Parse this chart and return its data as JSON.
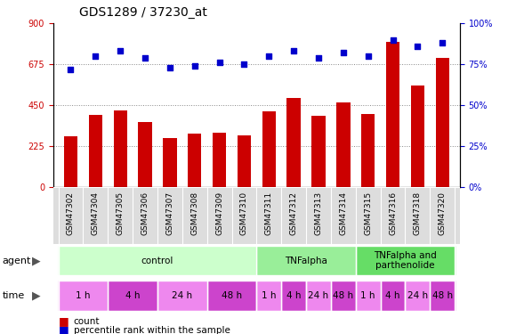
{
  "title": "GDS1289 / 37230_at",
  "samples": [
    "GSM47302",
    "GSM47304",
    "GSM47305",
    "GSM47306",
    "GSM47307",
    "GSM47308",
    "GSM47309",
    "GSM47310",
    "GSM47311",
    "GSM47312",
    "GSM47313",
    "GSM47314",
    "GSM47315",
    "GSM47316",
    "GSM47318",
    "GSM47320"
  ],
  "counts": [
    280,
    395,
    420,
    360,
    270,
    295,
    300,
    285,
    415,
    490,
    390,
    465,
    400,
    800,
    560,
    710
  ],
  "percentiles": [
    72,
    80,
    83,
    79,
    73,
    74,
    76,
    75,
    80,
    83,
    79,
    82,
    80,
    90,
    86,
    88
  ],
  "ylim_left": [
    0,
    900
  ],
  "ylim_right": [
    0,
    100
  ],
  "yticks_left": [
    0,
    225,
    450,
    675,
    900
  ],
  "yticks_right": [
    0,
    25,
    50,
    75,
    100
  ],
  "bar_color": "#cc0000",
  "dot_color": "#0000cc",
  "agent_groups": [
    {
      "label": "control",
      "start": 0,
      "end": 8,
      "color": "#ccffcc"
    },
    {
      "label": "TNFalpha",
      "start": 8,
      "end": 12,
      "color": "#99ee99"
    },
    {
      "label": "TNFalpha and\nparthenolide",
      "start": 12,
      "end": 16,
      "color": "#66dd66"
    }
  ],
  "time_groups": [
    {
      "label": "1 h",
      "start": 0,
      "end": 2,
      "color": "#ee88ee"
    },
    {
      "label": "4 h",
      "start": 2,
      "end": 4,
      "color": "#cc44cc"
    },
    {
      "label": "24 h",
      "start": 4,
      "end": 6,
      "color": "#ee88ee"
    },
    {
      "label": "48 h",
      "start": 6,
      "end": 8,
      "color": "#cc44cc"
    },
    {
      "label": "1 h",
      "start": 8,
      "end": 9,
      "color": "#ee88ee"
    },
    {
      "label": "4 h",
      "start": 9,
      "end": 10,
      "color": "#cc44cc"
    },
    {
      "label": "24 h",
      "start": 10,
      "end": 11,
      "color": "#ee88ee"
    },
    {
      "label": "48 h",
      "start": 11,
      "end": 12,
      "color": "#cc44cc"
    },
    {
      "label": "1 h",
      "start": 12,
      "end": 13,
      "color": "#ee88ee"
    },
    {
      "label": "4 h",
      "start": 13,
      "end": 14,
      "color": "#cc44cc"
    },
    {
      "label": "24 h",
      "start": 14,
      "end": 15,
      "color": "#ee88ee"
    },
    {
      "label": "48 h",
      "start": 15,
      "end": 16,
      "color": "#cc44cc"
    }
  ],
  "agent_label": "agent",
  "time_label": "time",
  "legend_count_label": "count",
  "legend_pct_label": "percentile rank within the sample",
  "bg_color": "#ffffff",
  "grid_color": "#888888",
  "tick_color_left": "#cc0000",
  "tick_color_right": "#0000cc",
  "bar_width": 0.55,
  "dot_size": 22,
  "tick_fontsize": 7,
  "label_fontsize": 6.5,
  "title_fontsize": 10
}
